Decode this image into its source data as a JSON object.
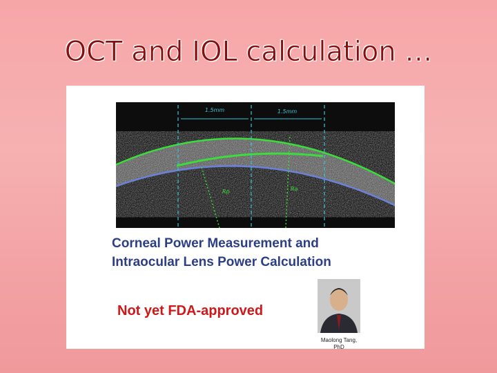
{
  "slide": {
    "title": "OCT and IOL calculation …",
    "figure": {
      "scale_labels": [
        "1.5mm",
        "1.5mm"
      ],
      "radius_labels": [
        "Rp",
        "Ra"
      ]
    },
    "caption": {
      "lines": [
        "Corneal Power Measurement and",
        "Intraocular Lens Power Calculation"
      ]
    },
    "note": "Not yet FDA-approved",
    "person": {
      "lines": [
        "Maolong Tang,",
        "PhD"
      ]
    }
  }
}
